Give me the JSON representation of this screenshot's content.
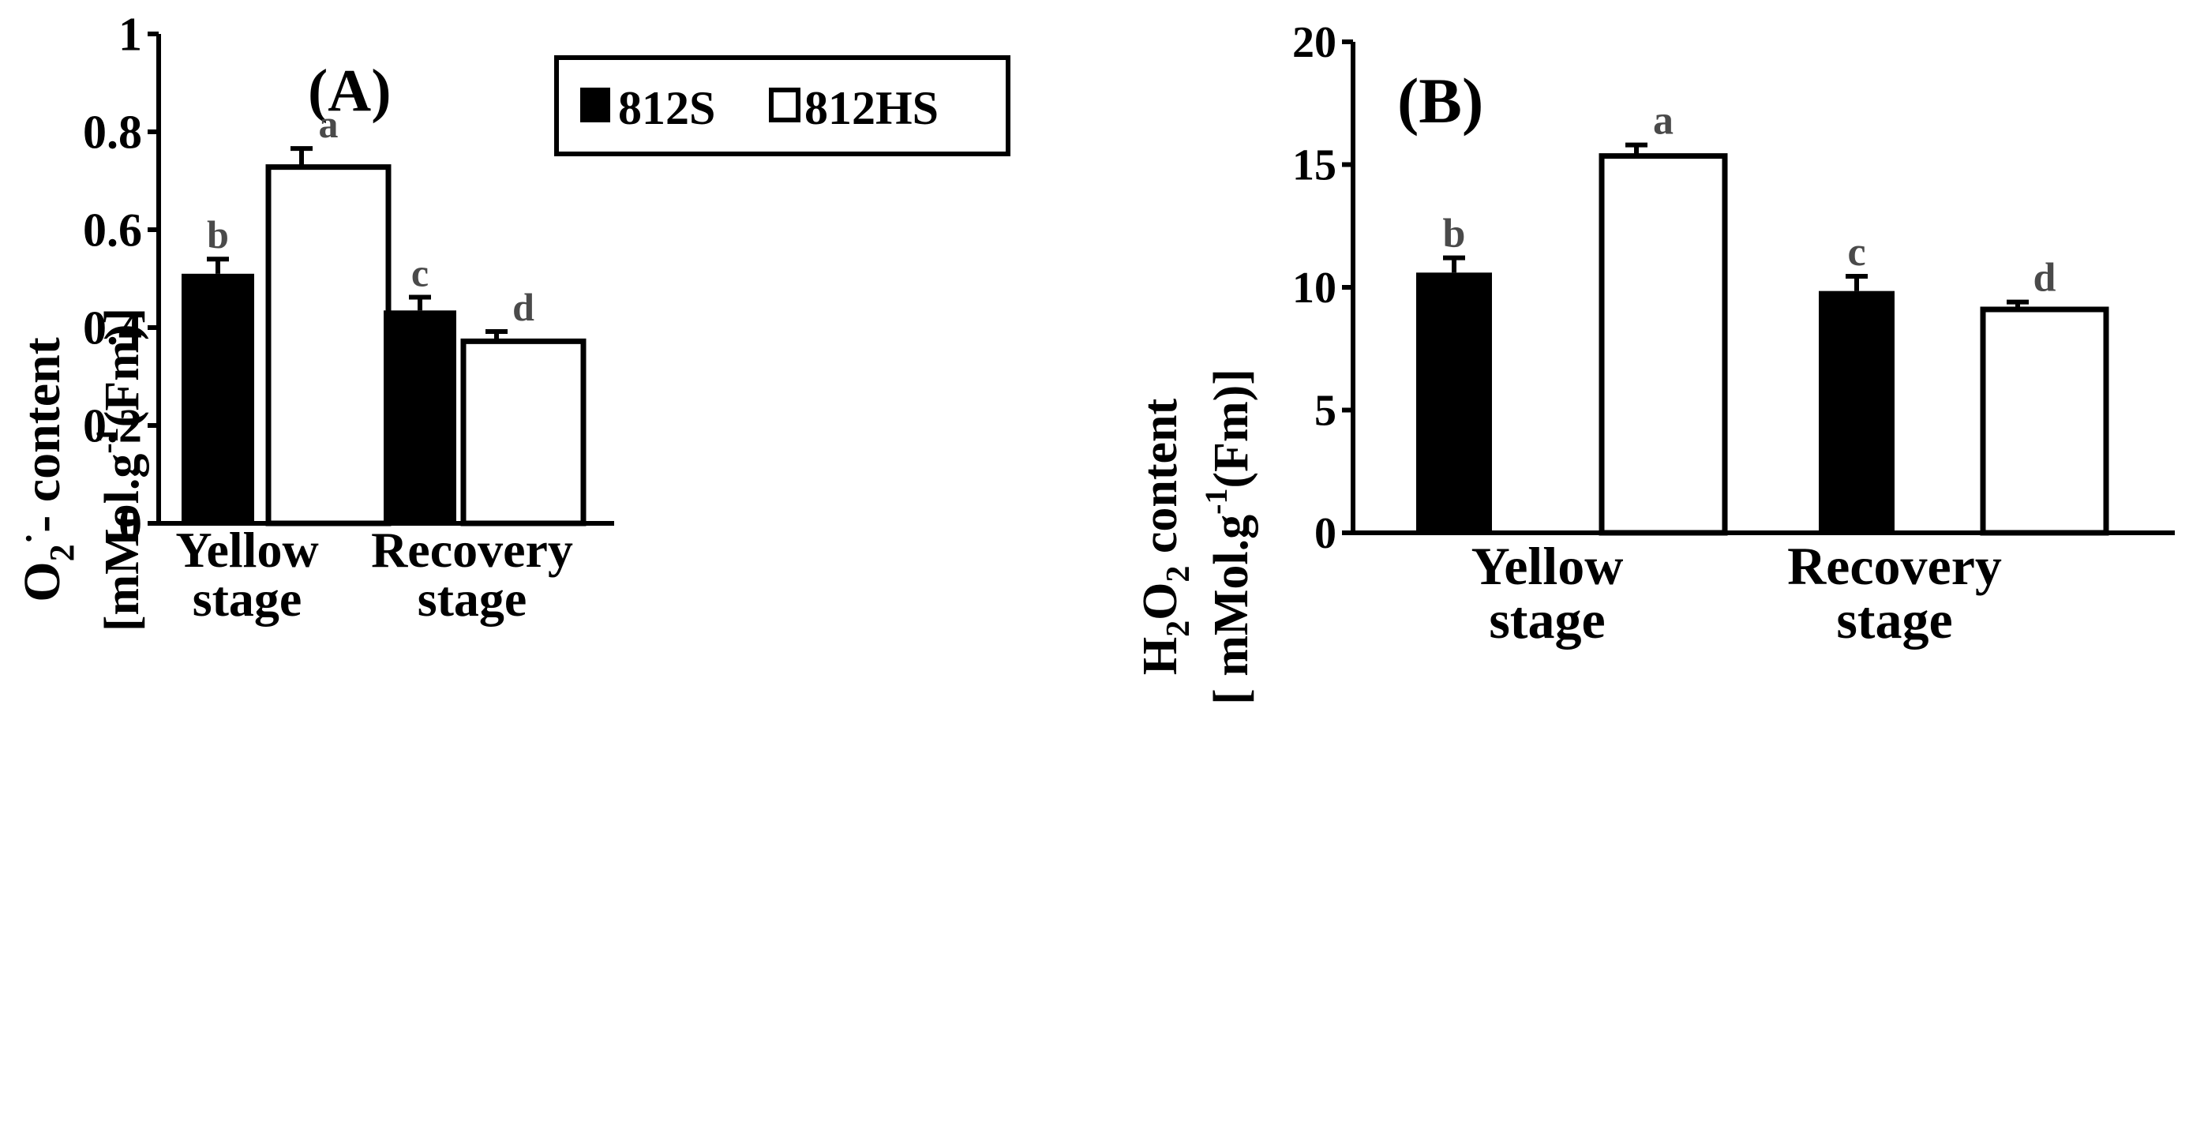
{
  "chart_data": [
    {
      "type": "bar",
      "panel_label": "(A)",
      "categories": [
        "Yellow stage",
        "Recovery stage"
      ],
      "category_lines": [
        [
          "Yellow",
          "stage"
        ],
        [
          "Recovery",
          "stage"
        ]
      ],
      "series": [
        {
          "name": "812S",
          "values": [
            0.51,
            0.435
          ],
          "errors": [
            0.03,
            0.027
          ],
          "color": "#000000"
        },
        {
          "name": "812HS",
          "values": [
            0.728,
            0.372
          ],
          "errors": [
            0.038,
            0.02
          ],
          "color": "#ffffff"
        }
      ],
      "significance": [
        [
          "b",
          "a"
        ],
        [
          "c",
          "d"
        ]
      ],
      "ylim": [
        0,
        1
      ],
      "yticks": [
        0,
        0.2,
        0.4,
        0.6,
        0.8,
        1
      ],
      "ytick_labels": [
        "0",
        "0.2",
        "0.4",
        "0.6",
        "0.8",
        "1"
      ],
      "ylabel_line1": {
        "base": "O",
        "sub": "2",
        "sup": "·",
        "rest": "- content"
      },
      "ylabel_line2": {
        "pre": "[mMol.g",
        "sup": "-1",
        "post": "(Fm)]"
      },
      "legend": {
        "placement": "top-right",
        "entries": [
          "812S",
          "812HS"
        ]
      },
      "grid": false
    },
    {
      "type": "bar",
      "panel_label": "(B)",
      "categories": [
        "Yellow stage",
        "Recovery stage"
      ],
      "category_lines": [
        [
          "Yellow",
          "stage"
        ],
        [
          "Recovery",
          "stage"
        ]
      ],
      "series": [
        {
          "name": "812S",
          "values": [
            10.6,
            9.85
          ],
          "errors": [
            0.6,
            0.6
          ],
          "color": "#000000"
        },
        {
          "name": "812HS",
          "values": [
            15.35,
            9.1
          ],
          "errors": [
            0.45,
            0.3
          ],
          "color": "#ffffff"
        }
      ],
      "significance": [
        [
          "b",
          "a"
        ],
        [
          "c",
          "d"
        ]
      ],
      "ylim": [
        0,
        20
      ],
      "yticks": [
        0,
        5,
        10,
        15,
        20
      ],
      "ytick_labels": [
        "0",
        "5",
        "10",
        "15",
        "20"
      ],
      "ylabel_line1": {
        "a": "H",
        "s1": "2",
        "b": "O",
        "s2": "2",
        "rest": " content"
      },
      "ylabel_line2": {
        "pre": "[ mMol.g",
        "sup": "-1",
        "post": "(Fm)]"
      },
      "grid": false
    }
  ]
}
